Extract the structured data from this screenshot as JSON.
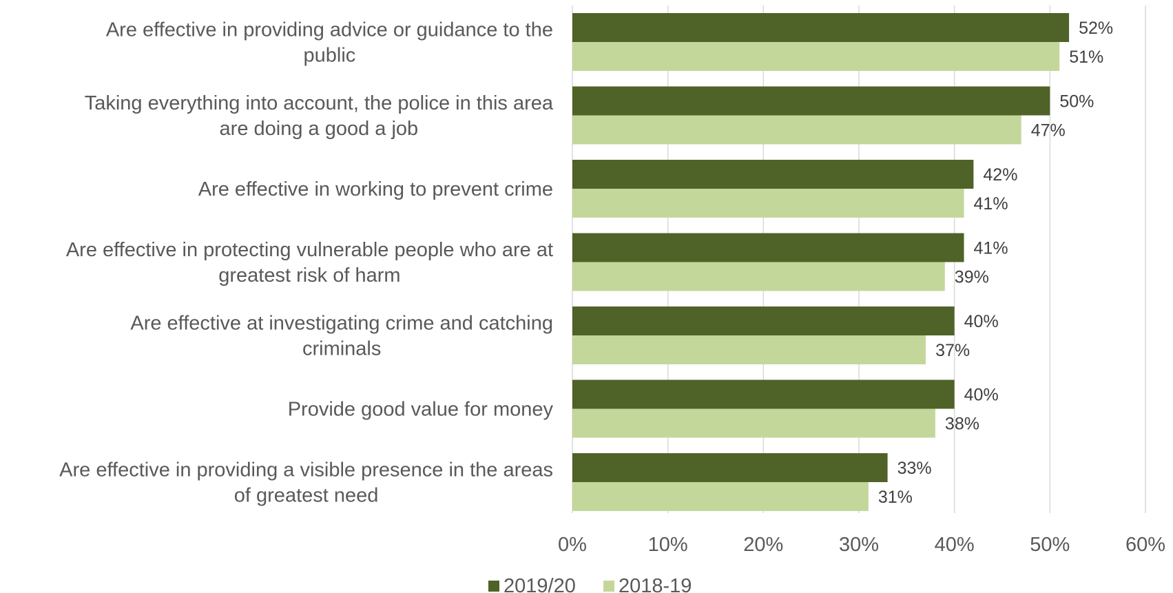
{
  "chart_data": {
    "type": "bar",
    "orientation": "horizontal",
    "categories": [
      [
        "Are effective in providing advice or guidance to the",
        "public"
      ],
      [
        "Taking everything into account, the police in this area",
        "are doing a good a job"
      ],
      [
        "Are effective in working to prevent crime"
      ],
      [
        "Are effective in protecting vulnerable people who are at",
        "greatest risk of harm"
      ],
      [
        "Are effective at investigating crime and catching",
        "criminals"
      ],
      [
        "Provide good value for money"
      ],
      [
        "Are effective in providing a visible presence in the areas",
        "of greatest need"
      ]
    ],
    "series": [
      {
        "name": "2019/20",
        "color": "#4f6228",
        "values": [
          52,
          50,
          42,
          41,
          40,
          40,
          33
        ],
        "labels": [
          "52%",
          "50%",
          "42%",
          "41%",
          "40%",
          "40%",
          "33%"
        ]
      },
      {
        "name": "2018-19",
        "color": "#c4d79b",
        "values": [
          51,
          47,
          41,
          39,
          37,
          38,
          31
        ],
        "labels": [
          "51%",
          "47%",
          "41%",
          "39%",
          "37%",
          "38%",
          "31%"
        ]
      }
    ],
    "xlim": [
      0,
      60
    ],
    "xticks": [
      0,
      10,
      20,
      30,
      40,
      50,
      60
    ],
    "xtick_labels": [
      "0%",
      "10%",
      "20%",
      "30%",
      "40%",
      "50%",
      "60%"
    ],
    "grid": "vertical",
    "legend_position": "bottom",
    "gridline_color": "#d9d9d9"
  }
}
